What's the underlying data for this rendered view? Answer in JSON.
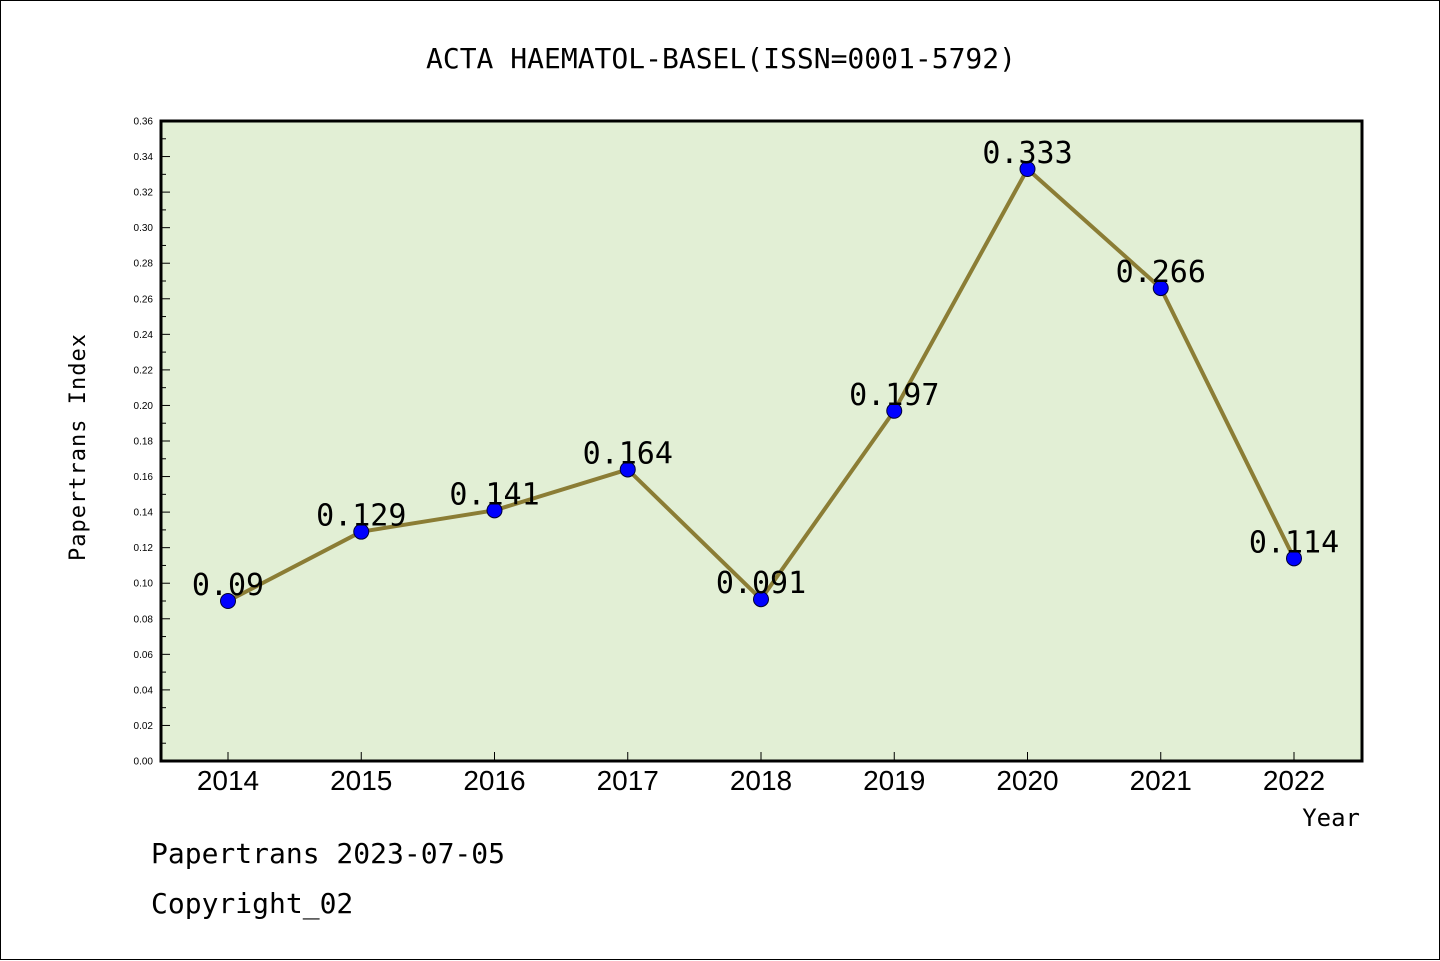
{
  "chart_data": {
    "type": "line",
    "title": "ACTA HAEMATOL-BASEL(ISSN=0001-5792)",
    "xlabel": "Year",
    "ylabel": "Papertrans Index",
    "categories": [
      "2014",
      "2015",
      "2016",
      "2017",
      "2018",
      "2019",
      "2020",
      "2021",
      "2022"
    ],
    "series": [
      {
        "values": [
          0.09,
          0.129,
          0.141,
          0.164,
          0.091,
          0.197,
          0.333,
          0.266,
          0.114
        ],
        "data_labels": [
          "0.09",
          "0.129",
          "0.141",
          "0.164",
          "0.091",
          "0.197",
          "0.333",
          "0.266",
          "0.114"
        ]
      }
    ],
    "ylim": [
      0,
      0.36
    ],
    "yticks": [
      "0.00",
      "0.02",
      "0.04",
      "0.06",
      "0.08",
      "0.10",
      "0.12",
      "0.14",
      "0.16",
      "0.18",
      "0.20",
      "0.22",
      "0.24",
      "0.26",
      "0.28",
      "0.30",
      "0.32",
      "0.34",
      "0.36"
    ],
    "grid": false,
    "colors": {
      "plot_background": "#e2efd5",
      "line": "#8b7d35",
      "marker": "#0000ff"
    }
  },
  "footer": {
    "line1": "Papertrans 2023-07-05",
    "line2": "Copyright_02"
  }
}
